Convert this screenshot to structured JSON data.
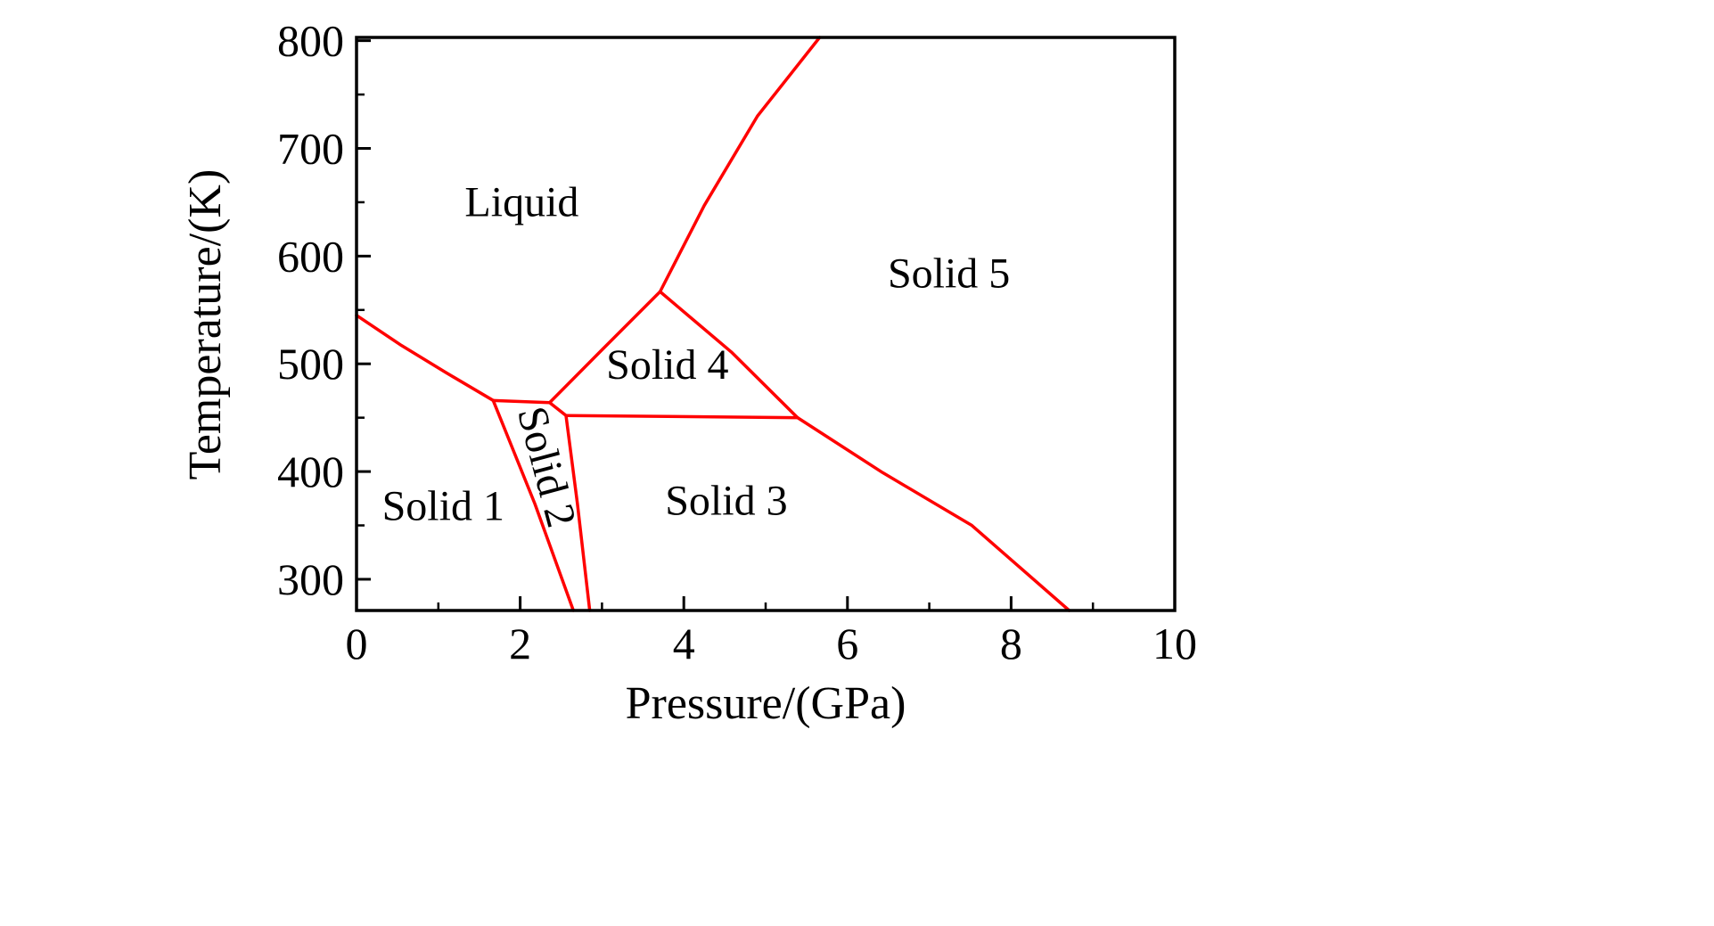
{
  "figure": {
    "background": "#ffffff",
    "axis_color": "#000000",
    "line_color": "#ff0000"
  },
  "chart_data": {
    "type": "line",
    "title": "",
    "xlabel": "Pressure/(GPa)",
    "ylabel": "Temperature/(K)",
    "xlim": [
      0,
      10
    ],
    "ylim": [
      271,
      803
    ],
    "xticks": [
      0,
      2,
      4,
      6,
      8,
      10
    ],
    "yticks": [
      300,
      400,
      500,
      600,
      700,
      800
    ],
    "xminorticks": [
      1,
      3,
      5,
      7,
      9
    ],
    "yminorticks": [
      350,
      450,
      550,
      650,
      750
    ],
    "grid": false,
    "legend": "none",
    "series": [
      {
        "name": "liquid-solid1",
        "points": [
          [
            0,
            545
          ],
          [
            0.55,
            517
          ],
          [
            1.09,
            492
          ],
          [
            1.67,
            466
          ]
        ]
      },
      {
        "name": "liquid-solid2",
        "points": [
          [
            1.67,
            466
          ],
          [
            2.36,
            464
          ]
        ]
      },
      {
        "name": "liquid-solid4",
        "points": [
          [
            2.36,
            464
          ],
          [
            3.0,
            513
          ],
          [
            3.71,
            567
          ]
        ]
      },
      {
        "name": "liquid-solid5",
        "points": [
          [
            3.71,
            567
          ],
          [
            4.25,
            647
          ],
          [
            4.9,
            730
          ],
          [
            5.66,
            803
          ]
        ]
      },
      {
        "name": "solid4-solid5",
        "points": [
          [
            3.71,
            567
          ],
          [
            4.58,
            511
          ],
          [
            5.39,
            450
          ]
        ]
      },
      {
        "name": "solid3-solid4",
        "points": [
          [
            2.56,
            452
          ],
          [
            5.39,
            450
          ]
        ]
      },
      {
        "name": "solid3-solid5",
        "points": [
          [
            5.39,
            450
          ],
          [
            6.43,
            399
          ],
          [
            7.52,
            350
          ],
          [
            8.71,
            271
          ]
        ]
      },
      {
        "name": "solid1-solid2",
        "points": [
          [
            1.67,
            466
          ],
          [
            2.18,
            370
          ],
          [
            2.65,
            271
          ]
        ]
      },
      {
        "name": "solid2-solid3",
        "points": [
          [
            2.36,
            464
          ],
          [
            2.56,
            452
          ],
          [
            2.7,
            370
          ],
          [
            2.85,
            271
          ]
        ]
      }
    ],
    "regions": [
      {
        "label": "Liquid",
        "x": 2.02,
        "y": 637,
        "rotation": 0
      },
      {
        "label": "Solid 5",
        "x": 7.24,
        "y": 571,
        "rotation": 0
      },
      {
        "label": "Solid 4",
        "x": 3.8,
        "y": 486,
        "rotation": 0
      },
      {
        "label": "Solid 1",
        "x": 1.06,
        "y": 355,
        "rotation": 0
      },
      {
        "label": "Solid 2",
        "x": 2.16,
        "y": 401,
        "rotation": 75
      },
      {
        "label": "Solid 3",
        "x": 4.52,
        "y": 360,
        "rotation": 0
      }
    ]
  }
}
